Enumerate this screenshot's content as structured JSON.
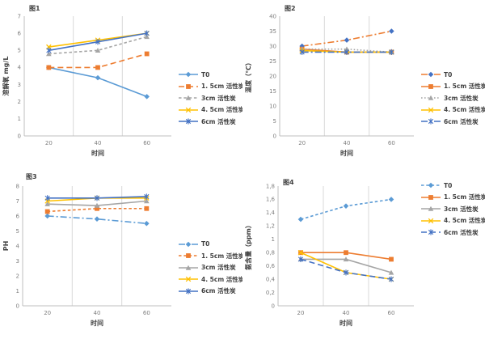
{
  "page": {
    "background": "#FFFFFF"
  },
  "chart_data": [
    {
      "type": "line",
      "title": "图1",
      "xlabel": "时间",
      "ylabel": "溶解氧 mg/L",
      "x": [
        20,
        40,
        60
      ],
      "xticks": [
        "20",
        "40",
        "60"
      ],
      "xlim": [
        10,
        70
      ],
      "x_gridlines": [
        30,
        50
      ],
      "ylim": [
        0,
        7
      ],
      "yticks": [
        "0",
        "1",
        "2",
        "3",
        "4",
        "5",
        "6",
        "7"
      ],
      "grid": "vertical-only",
      "legend_position": "right-center",
      "series": [
        {
          "name": "T0",
          "values": [
            4.0,
            3.4,
            2.3
          ],
          "color": "#5B9BD5",
          "marker": "diamond",
          "line_style": "solid"
        },
        {
          "name": "1. 5cm 活性炭",
          "values": [
            4.0,
            4.0,
            4.8
          ],
          "color": "#ED7D31",
          "marker": "square",
          "line_style": "dash"
        },
        {
          "name": "3cm 活性炭",
          "values": [
            4.8,
            5.0,
            5.8
          ],
          "color": "#A5A5A5",
          "marker": "triangle",
          "line_style": "shortdash"
        },
        {
          "name": "4. 5cm 活性炭",
          "values": [
            5.2,
            5.6,
            6.0
          ],
          "color": "#FFC000",
          "marker": "x",
          "line_style": "solid"
        },
        {
          "name": "6cm 活性炭",
          "values": [
            5.0,
            5.5,
            6.0
          ],
          "color": "#4472C4",
          "marker": "asterisk",
          "line_style": "solid"
        }
      ],
      "layout": {
        "margin_left": 30,
        "title_left": 36
      }
    },
    {
      "type": "line",
      "title": "图2",
      "xlabel": "时间",
      "ylabel": "温度（℃）",
      "x": [
        20,
        40,
        60
      ],
      "xticks": [
        "20",
        "40",
        "60"
      ],
      "xlim": [
        10,
        70
      ],
      "x_gridlines": [
        30,
        50
      ],
      "ylim": [
        0,
        40
      ],
      "yticks": [
        "0",
        "5",
        "10",
        "15",
        "20",
        "25",
        "30",
        "35",
        "40"
      ],
      "grid": "vertical-only",
      "legend_position": "right-center",
      "series": [
        {
          "name": "T0",
          "values": [
            30,
            32,
            35
          ],
          "color": "#ED7D31",
          "marker_color": "#4472C4",
          "marker": "diamond",
          "line_style": "dashdot"
        },
        {
          "name": "1. 5cm 活性炭",
          "values": [
            29,
            28,
            28
          ],
          "color": "#ED7D31",
          "marker": "square",
          "line_style": "solid"
        },
        {
          "name": "3cm 活性炭",
          "values": [
            29,
            29,
            28
          ],
          "color": "#A5A5A5",
          "marker": "triangle",
          "line_style": "dot"
        },
        {
          "name": "4. 5cm 活性炭",
          "values": [
            28.5,
            28,
            28
          ],
          "color": "#FFC000",
          "marker": "x",
          "line_style": "solid"
        },
        {
          "name": "6cm 活性炭",
          "values": [
            28,
            28,
            28
          ],
          "color": "#4472C4",
          "marker": "asterisk",
          "line_style": "dashdot"
        }
      ],
      "layout": {
        "margin_left": 46,
        "title_left": 52
      }
    },
    {
      "type": "line",
      "title": "图3",
      "xlabel": "时间",
      "ylabel": "PH",
      "x": [
        20,
        40,
        60
      ],
      "xticks": [
        "20",
        "40",
        "60"
      ],
      "xlim": [
        10,
        70
      ],
      "x_gridlines": [
        30,
        50
      ],
      "ylim": [
        0,
        8
      ],
      "yticks": [
        "0",
        "1",
        "2",
        "3",
        "4",
        "5",
        "6",
        "7",
        "8"
      ],
      "grid": "vertical-only",
      "legend_position": "right-center",
      "series": [
        {
          "name": "T0",
          "values": [
            6.0,
            5.8,
            5.5
          ],
          "color": "#5B9BD5",
          "marker": "diamond",
          "line_style": "dashdot"
        },
        {
          "name": "1. 5cm 活性炭",
          "values": [
            6.3,
            6.5,
            6.5
          ],
          "color": "#ED7D31",
          "marker": "square",
          "line_style": "shortdash"
        },
        {
          "name": "3cm 活性炭",
          "values": [
            6.8,
            6.7,
            7.0
          ],
          "color": "#A5A5A5",
          "marker": "triangle",
          "line_style": "solid"
        },
        {
          "name": "4. 5cm 活性炭",
          "values": [
            7.0,
            7.2,
            7.2
          ],
          "color": "#FFC000",
          "marker": "x",
          "line_style": "solid"
        },
        {
          "name": "6cm 活性炭",
          "values": [
            7.2,
            7.2,
            7.3
          ],
          "color": "#4472C4",
          "marker": "asterisk",
          "line_style": "solid"
        }
      ],
      "layout": {
        "margin_left": 28,
        "title_left": 32
      }
    },
    {
      "type": "line",
      "title": "图4",
      "xlabel": "时间",
      "ylabel": "氨含量（ppm）",
      "x": [
        20,
        40,
        60
      ],
      "xticks": [
        "20",
        "40",
        "60"
      ],
      "xlim": [
        10,
        70
      ],
      "x_gridlines": [
        30,
        50
      ],
      "ylim": [
        0,
        1.8
      ],
      "yticks": [
        "0",
        "0,2",
        "0,4",
        "0,6",
        "0,8",
        "1",
        "1,2",
        "1,4",
        "1,6",
        "1,8"
      ],
      "grid": "vertical-only",
      "legend_position": "right-top",
      "series": [
        {
          "name": "T0",
          "values": [
            1.3,
            1.5,
            1.6
          ],
          "color": "#5B9BD5",
          "marker": "diamond",
          "line_style": "shortdash"
        },
        {
          "name": "1. 5cm 活性炭",
          "values": [
            0.8,
            0.8,
            0.7
          ],
          "color": "#ED7D31",
          "marker": "square",
          "line_style": "solid"
        },
        {
          "name": "3cm 活性炭",
          "values": [
            0.7,
            0.7,
            0.5
          ],
          "color": "#A5A5A5",
          "marker": "triangle",
          "line_style": "solid"
        },
        {
          "name": "4. 5cm 活性炭",
          "values": [
            0.8,
            0.5,
            0.4
          ],
          "color": "#FFC000",
          "marker": "x",
          "line_style": "solid"
        },
        {
          "name": "6cm 活性炭",
          "values": [
            0.7,
            0.5,
            0.4
          ],
          "color": "#4472C4",
          "marker": "asterisk",
          "line_style": "dash"
        }
      ],
      "layout": {
        "margin_left": 44,
        "title_left": 50
      }
    }
  ]
}
